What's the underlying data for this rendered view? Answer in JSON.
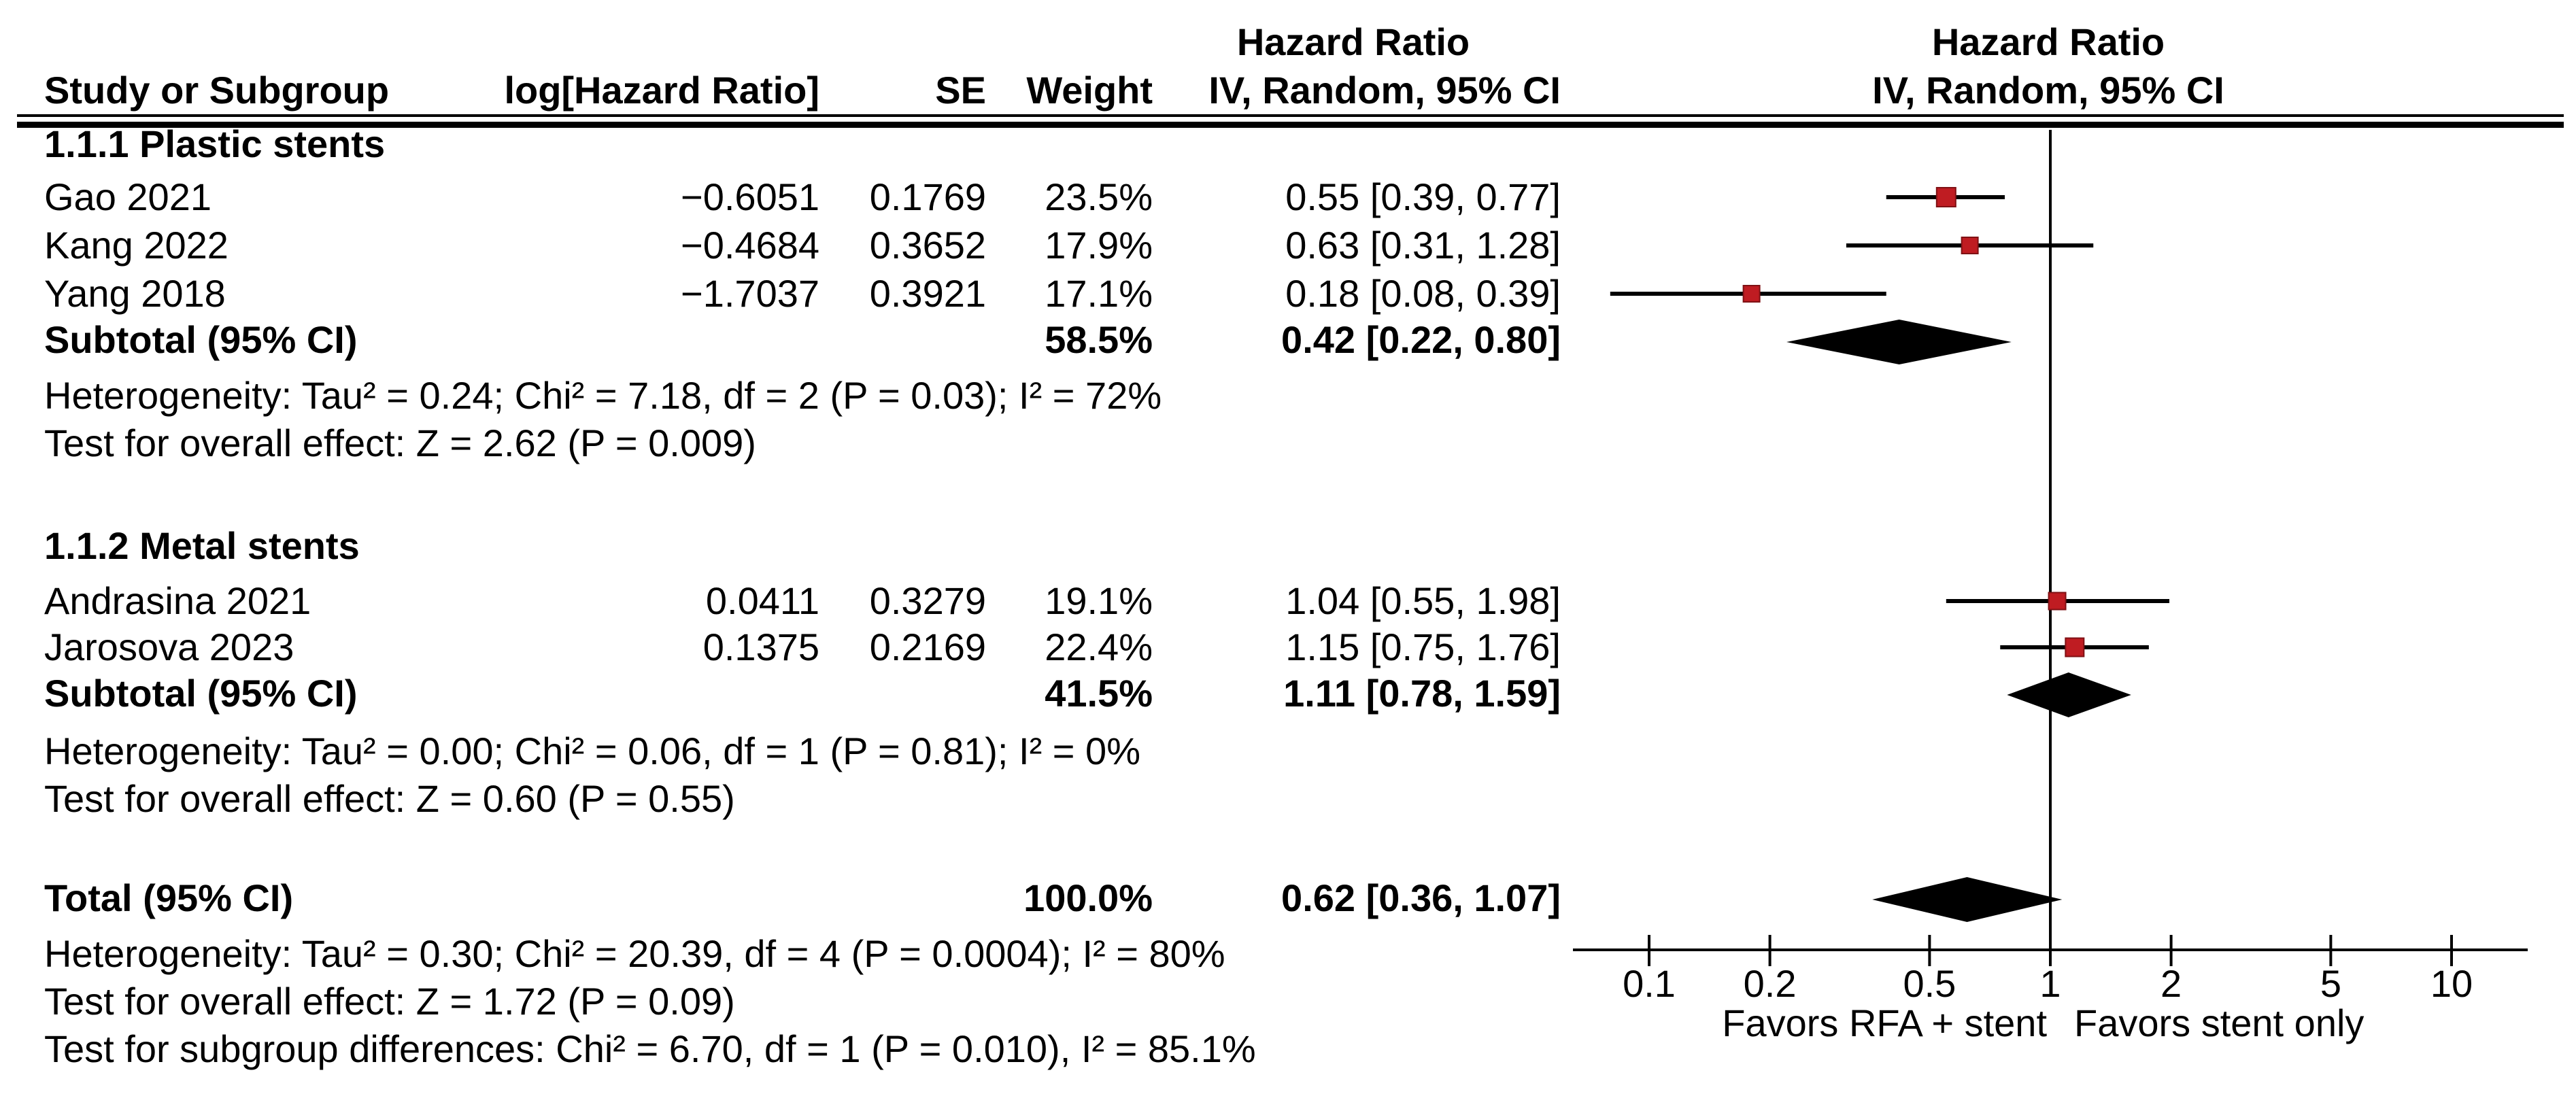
{
  "header": {
    "hazard_ratio_left": "Hazard Ratio",
    "hazard_ratio_right": "Hazard Ratio",
    "col_study": "Study or Subgroup",
    "col_loghr": "log[Hazard Ratio]",
    "col_se": "SE",
    "col_weight": "Weight",
    "col_ci": "IV, Random, 95% CI",
    "col_ci_right": "IV, Random, 95% CI"
  },
  "groups": [
    {
      "label": "1.1.1 Plastic stents",
      "studies": [
        {
          "study": "Gao 2021",
          "loghr": "−0.6051",
          "se": "0.1769",
          "weight": "23.5%",
          "ci": "0.55 [0.39, 0.77]"
        },
        {
          "study": "Kang 2022",
          "loghr": "−0.4684",
          "se": "0.3652",
          "weight": "17.9%",
          "ci": "0.63 [0.31, 1.28]"
        },
        {
          "study": "Yang 2018",
          "loghr": "−1.7037",
          "se": "0.3921",
          "weight": "17.1%",
          "ci": "0.18 [0.08, 0.39]"
        }
      ],
      "subtotal": {
        "label": "Subtotal (95% CI)",
        "weight": "58.5%",
        "ci": "0.42 [0.22, 0.80]"
      },
      "heterogeneity": "Heterogeneity: Tau² = 0.24; Chi² = 7.18, df = 2 (P = 0.03); I² = 72%",
      "overall_effect": "Test for overall effect: Z = 2.62 (P = 0.009)"
    },
    {
      "label": "1.1.2 Metal stents",
      "studies": [
        {
          "study": "Andrasina 2021",
          "loghr": "0.0411",
          "se": "0.3279",
          "weight": "19.1%",
          "ci": "1.04 [0.55, 1.98]"
        },
        {
          "study": "Jarosova 2023",
          "loghr": "0.1375",
          "se": "0.2169",
          "weight": "22.4%",
          "ci": "1.15 [0.75, 1.76]"
        }
      ],
      "subtotal": {
        "label": "Subtotal (95% CI)",
        "weight": "41.5%",
        "ci": "1.11 [0.78, 1.59]"
      },
      "heterogeneity": "Heterogeneity: Tau² = 0.00; Chi² = 0.06, df = 1 (P = 0.81); I² = 0%",
      "overall_effect": "Test for overall effect: Z = 0.60 (P = 0.55)"
    }
  ],
  "total": {
    "label": "Total (95% CI)",
    "weight": "100.0%",
    "ci": "0.62 [0.36, 1.07]",
    "heterogeneity": "Heterogeneity: Tau² = 0.30; Chi² = 20.39, df = 4 (P = 0.0004); I² = 80%",
    "overall_effect": "Test for overall effect: Z = 1.72 (P = 0.09)",
    "subgroup_differences": "Test for subgroup differences: Chi² = 6.70, df = 1 (P = 0.010), I² = 85.1%"
  },
  "axis": {
    "tick_labels": [
      "0.1",
      "0.2",
      "0.5",
      "1",
      "2",
      "5",
      "10"
    ],
    "favors_left": "Favors RFA + stent",
    "favors_right": "Favors stent only"
  },
  "colors": {
    "marker_red": "#bf1c22",
    "diamond_black": "#000000",
    "line_black": "#000000"
  },
  "chart_data": {
    "type": "scatter",
    "variant": "forest-plot",
    "effect_measure": "Hazard Ratio, IV, Random, 95% CI",
    "x_scale": "log10",
    "x_ticks": [
      0.1,
      0.2,
      0.5,
      1,
      2,
      5,
      10
    ],
    "xlim": [
      0.065,
      15.5
    ],
    "null_line": 1,
    "series": [
      {
        "group": "1.1.1 Plastic stents",
        "points": [
          {
            "label": "Gao 2021",
            "loghr": -0.6051,
            "se": 0.1769,
            "weight_pct": 23.5,
            "hr": 0.55,
            "ci": [
              0.39,
              0.77
            ]
          },
          {
            "label": "Kang 2022",
            "loghr": -0.4684,
            "se": 0.3652,
            "weight_pct": 17.9,
            "hr": 0.63,
            "ci": [
              0.31,
              1.28
            ]
          },
          {
            "label": "Yang 2018",
            "loghr": -1.7037,
            "se": 0.3921,
            "weight_pct": 17.1,
            "hr": 0.18,
            "ci": [
              0.08,
              0.39
            ]
          }
        ],
        "subtotal": {
          "hr": 0.42,
          "ci": [
            0.22,
            0.8
          ],
          "weight_pct": 58.5,
          "tau2": 0.24,
          "chi2": 7.18,
          "df": 2,
          "p_het": 0.03,
          "i2_pct": 72,
          "z": 2.62,
          "p_overall": 0.009
        }
      },
      {
        "group": "1.1.2 Metal stents",
        "points": [
          {
            "label": "Andrasina 2021",
            "loghr": 0.0411,
            "se": 0.3279,
            "weight_pct": 19.1,
            "hr": 1.04,
            "ci": [
              0.55,
              1.98
            ]
          },
          {
            "label": "Jarosova 2023",
            "loghr": 0.1375,
            "se": 0.2169,
            "weight_pct": 22.4,
            "hr": 1.15,
            "ci": [
              0.75,
              1.76
            ]
          }
        ],
        "subtotal": {
          "hr": 1.11,
          "ci": [
            0.78,
            1.59
          ],
          "weight_pct": 41.5,
          "tau2": 0.0,
          "chi2": 0.06,
          "df": 1,
          "p_het": 0.81,
          "i2_pct": 0,
          "z": 0.6,
          "p_overall": 0.55
        }
      }
    ],
    "total": {
      "hr": 0.62,
      "ci": [
        0.36,
        1.07
      ],
      "weight_pct": 100.0,
      "tau2": 0.3,
      "chi2": 20.39,
      "df": 4,
      "p_het": 0.0004,
      "i2_pct": 80,
      "z": 1.72,
      "p_overall": 0.09
    },
    "subgroup_difference": {
      "chi2": 6.7,
      "df": 1,
      "p": 0.01,
      "i2_pct": 85.1
    },
    "footer_labels": [
      "Favors RFA + stent",
      "Favors stent only"
    ]
  }
}
